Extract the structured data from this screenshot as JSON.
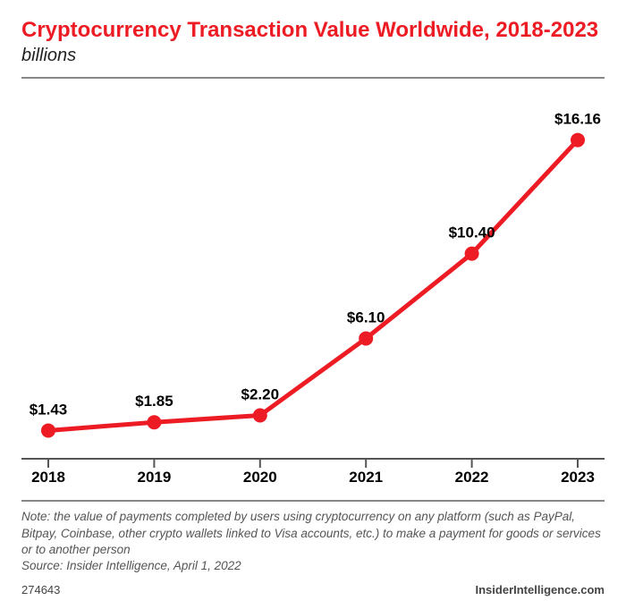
{
  "title": "Cryptocurrency Transaction Value Worldwide, 2018-2023",
  "subtitle": "billions",
  "note": "Note: the value of payments completed by users using cryptocurrency on any platform (such as PayPal, Bitpay, Coinbase, other crypto wallets linked to Visa accounts, etc.) to make a payment for goods or services or to another person",
  "source": "Source: Insider Intelligence, April 1, 2022",
  "ref_id": "274643",
  "brand": "InsiderIntelligence.com",
  "chart": {
    "type": "line",
    "categories": [
      "2018",
      "2019",
      "2020",
      "2021",
      "2022",
      "2023"
    ],
    "values": [
      1.43,
      1.85,
      2.2,
      6.1,
      10.4,
      16.16
    ],
    "value_labels": [
      "$1.43",
      "$1.85",
      "$2.20",
      "$6.10",
      "$10.40",
      "$16.16"
    ],
    "line_color": "#ed1c24",
    "line_width": 5,
    "marker_color": "#ed1c24",
    "marker_radius": 8,
    "axis_color": "#555555",
    "tick_color": "#555555",
    "background_color": "#ffffff",
    "title_color": "#ed1c24",
    "label_fontsize": 17,
    "value_fontsize": 17,
    "ylim": [
      0,
      18
    ],
    "y_axis_visible": false,
    "plot_padding_x": 30
  }
}
